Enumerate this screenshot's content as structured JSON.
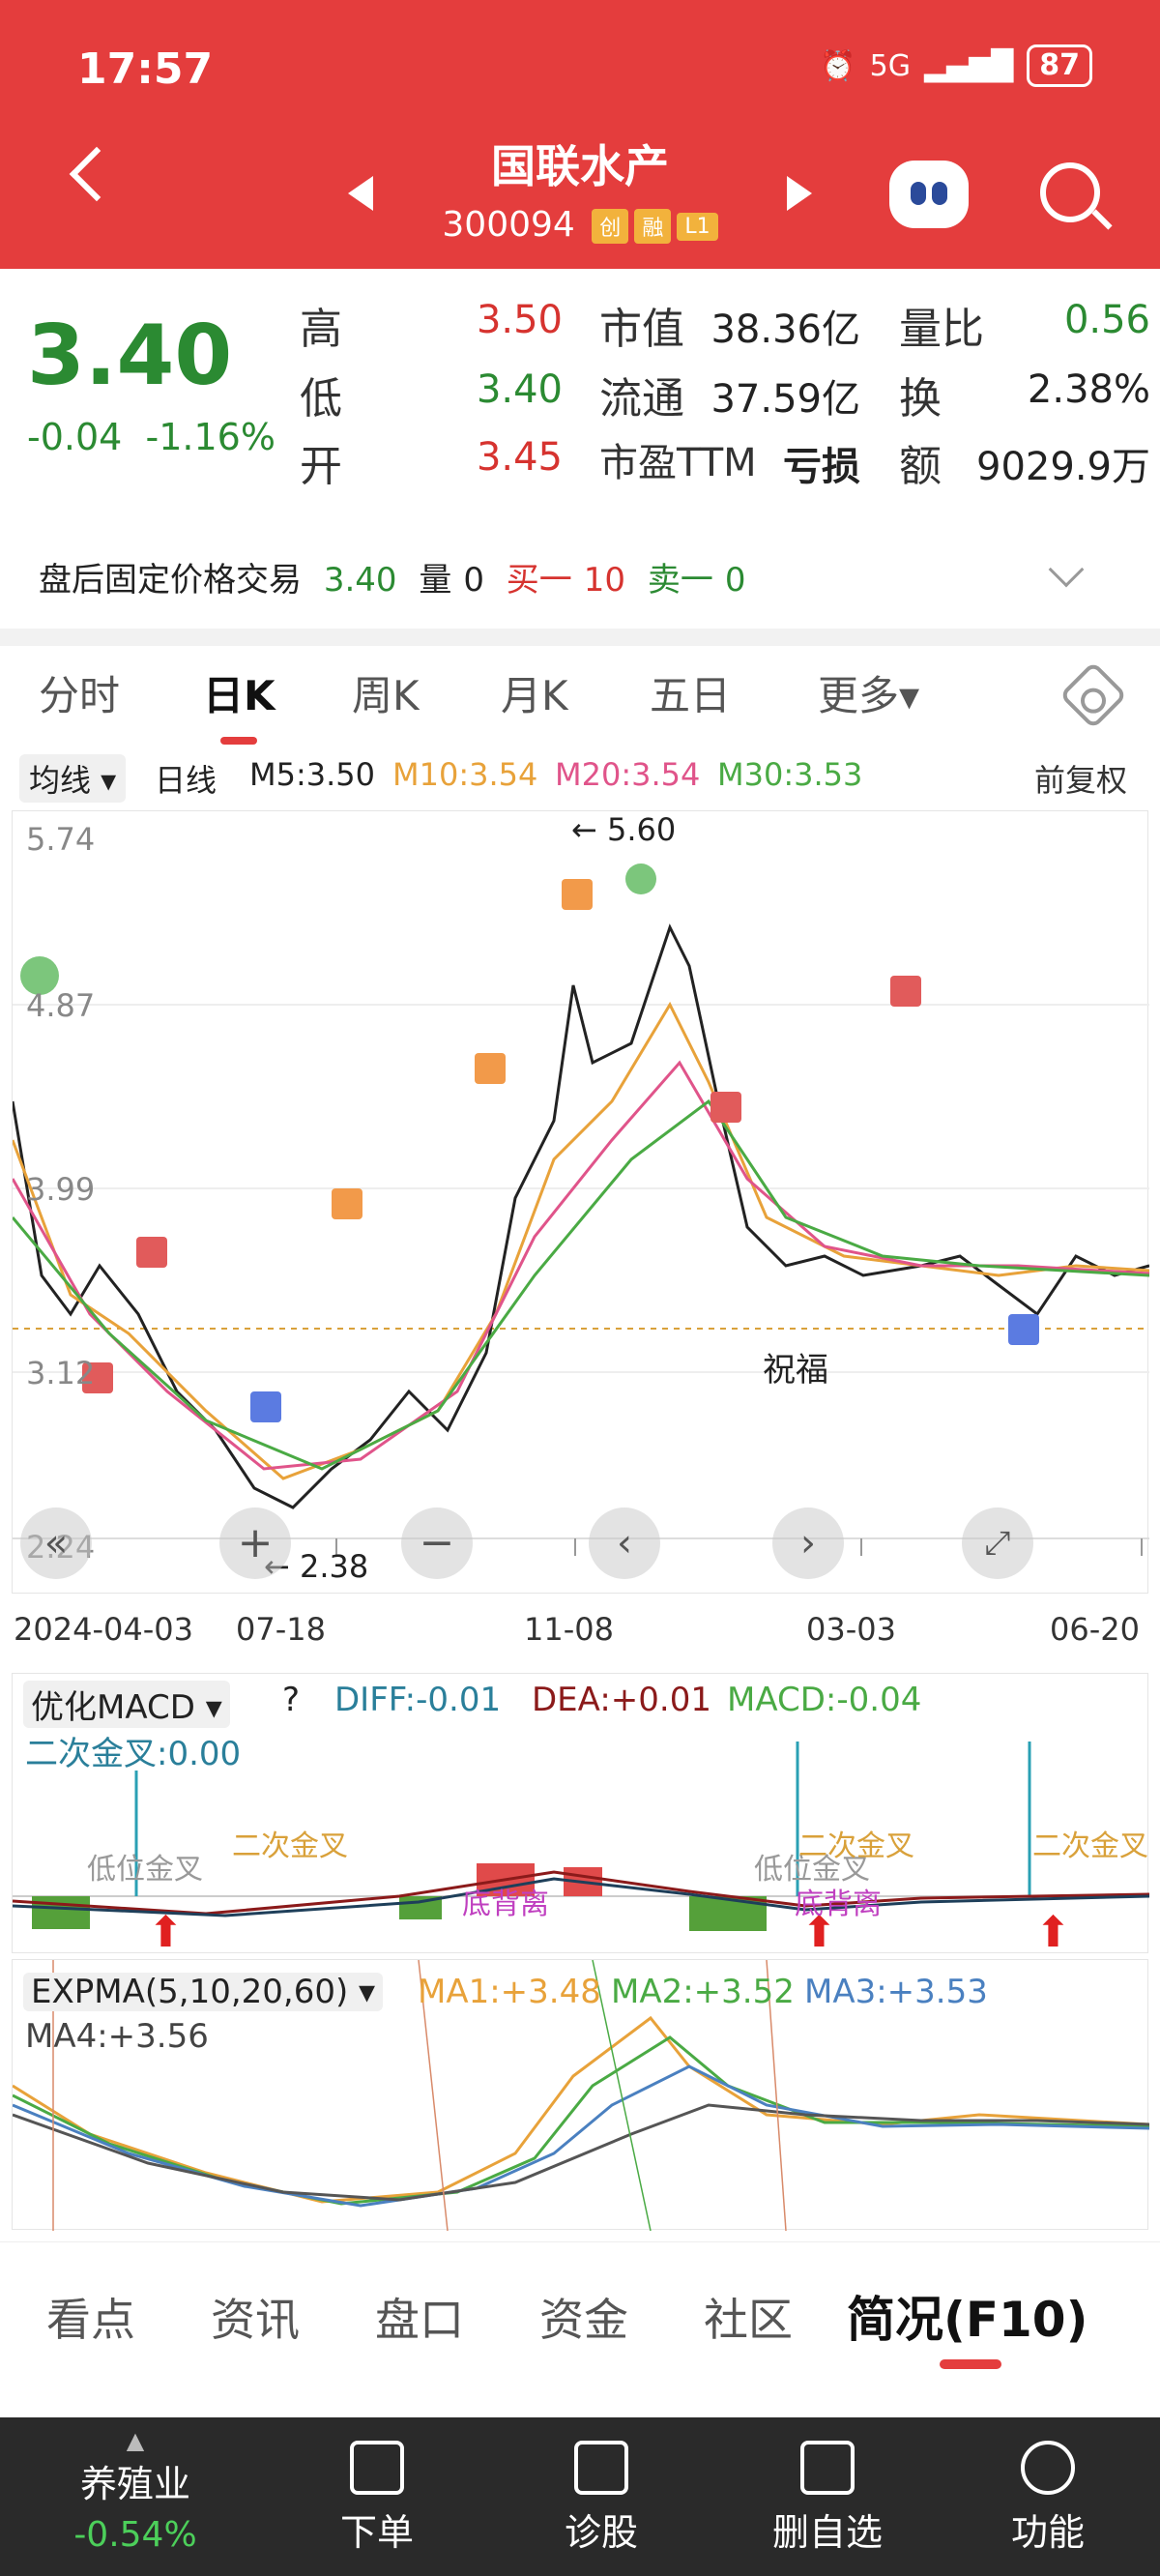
{
  "status": {
    "time": "17:57",
    "network": "5G",
    "battery": "87"
  },
  "header": {
    "title": "国联水产",
    "code": "300094",
    "tags": [
      "创",
      "融",
      "L1"
    ]
  },
  "quote": {
    "price": "3.40",
    "change": "-0.04",
    "change_pct": "-1.16%",
    "high_label": "高",
    "high": "3.50",
    "low_label": "低",
    "low": "3.40",
    "open_label": "开",
    "open": "3.45",
    "mktcap_label": "市值",
    "mktcap": "38.36亿",
    "float_label": "流通",
    "float": "37.59亿",
    "pe_label": "市盈TTM",
    "pe": "亏损",
    "volratio_label": "量比",
    "volratio": "0.56",
    "turnover_label": "换",
    "turnover": "2.38%",
    "amount_label": "额",
    "amount": "9029.9万"
  },
  "after_hours": {
    "label": "盘后固定价格交易",
    "price": "3.40",
    "vol_label": "量",
    "vol": "0",
    "buy_label": "买一",
    "buy": "10",
    "sell_label": "卖一",
    "sell": "0"
  },
  "tabs": {
    "t1": "分时",
    "t2": "日K",
    "t3": "周K",
    "t4": "月K",
    "t5": "五日",
    "t6": "更多▾"
  },
  "ma_bar": {
    "select": "均线 ▾",
    "period": "日线",
    "m5": "M5:3.50",
    "m10": "M10:3.54",
    "m20": "M20:3.54",
    "m30": "M30:3.53",
    "adjust": "前复权"
  },
  "kline": {
    "y_top": "5.74",
    "y2": "4.87",
    "y3": "3.99",
    "y4": "3.12",
    "y_bottom": "2.24",
    "high_mark": "5.60",
    "low_mark": "2.38",
    "note": "祝福",
    "dates": [
      "2024-04-03",
      "07-18",
      "11-08",
      "03-03",
      "06-20"
    ]
  },
  "macd": {
    "select": "优化MACD ▾",
    "diff": "DIFF:-0.01",
    "dea": "DEA:+0.01",
    "macd": "MACD:-0.04",
    "sub": "二次金叉:0.00",
    "labels": [
      "低位金叉",
      "二次金叉",
      "底背离",
      "低位金叉",
      "底背离",
      "二次金叉",
      "二次金叉"
    ]
  },
  "expma": {
    "select": "EXPMA(5,10,20,60) ▾",
    "ma1": "MA1:+3.48",
    "ma2": "MA2:+3.52",
    "ma3": "MA3:+3.53",
    "ma4": "MA4:+3.56"
  },
  "bottom_tabs": {
    "b1": "看点",
    "b2": "资讯",
    "b3": "盘口",
    "b4": "资金",
    "b5": "社区",
    "b6": "简况(F10)"
  },
  "footer": {
    "sector": "养殖业",
    "sector_pct": "-0.54%",
    "f1": "下单",
    "f2": "诊股",
    "f3": "删自选",
    "f4": "功能"
  },
  "colors": {
    "header": "#e43d3d",
    "up": "#d6332f",
    "down": "#2b8a32"
  }
}
